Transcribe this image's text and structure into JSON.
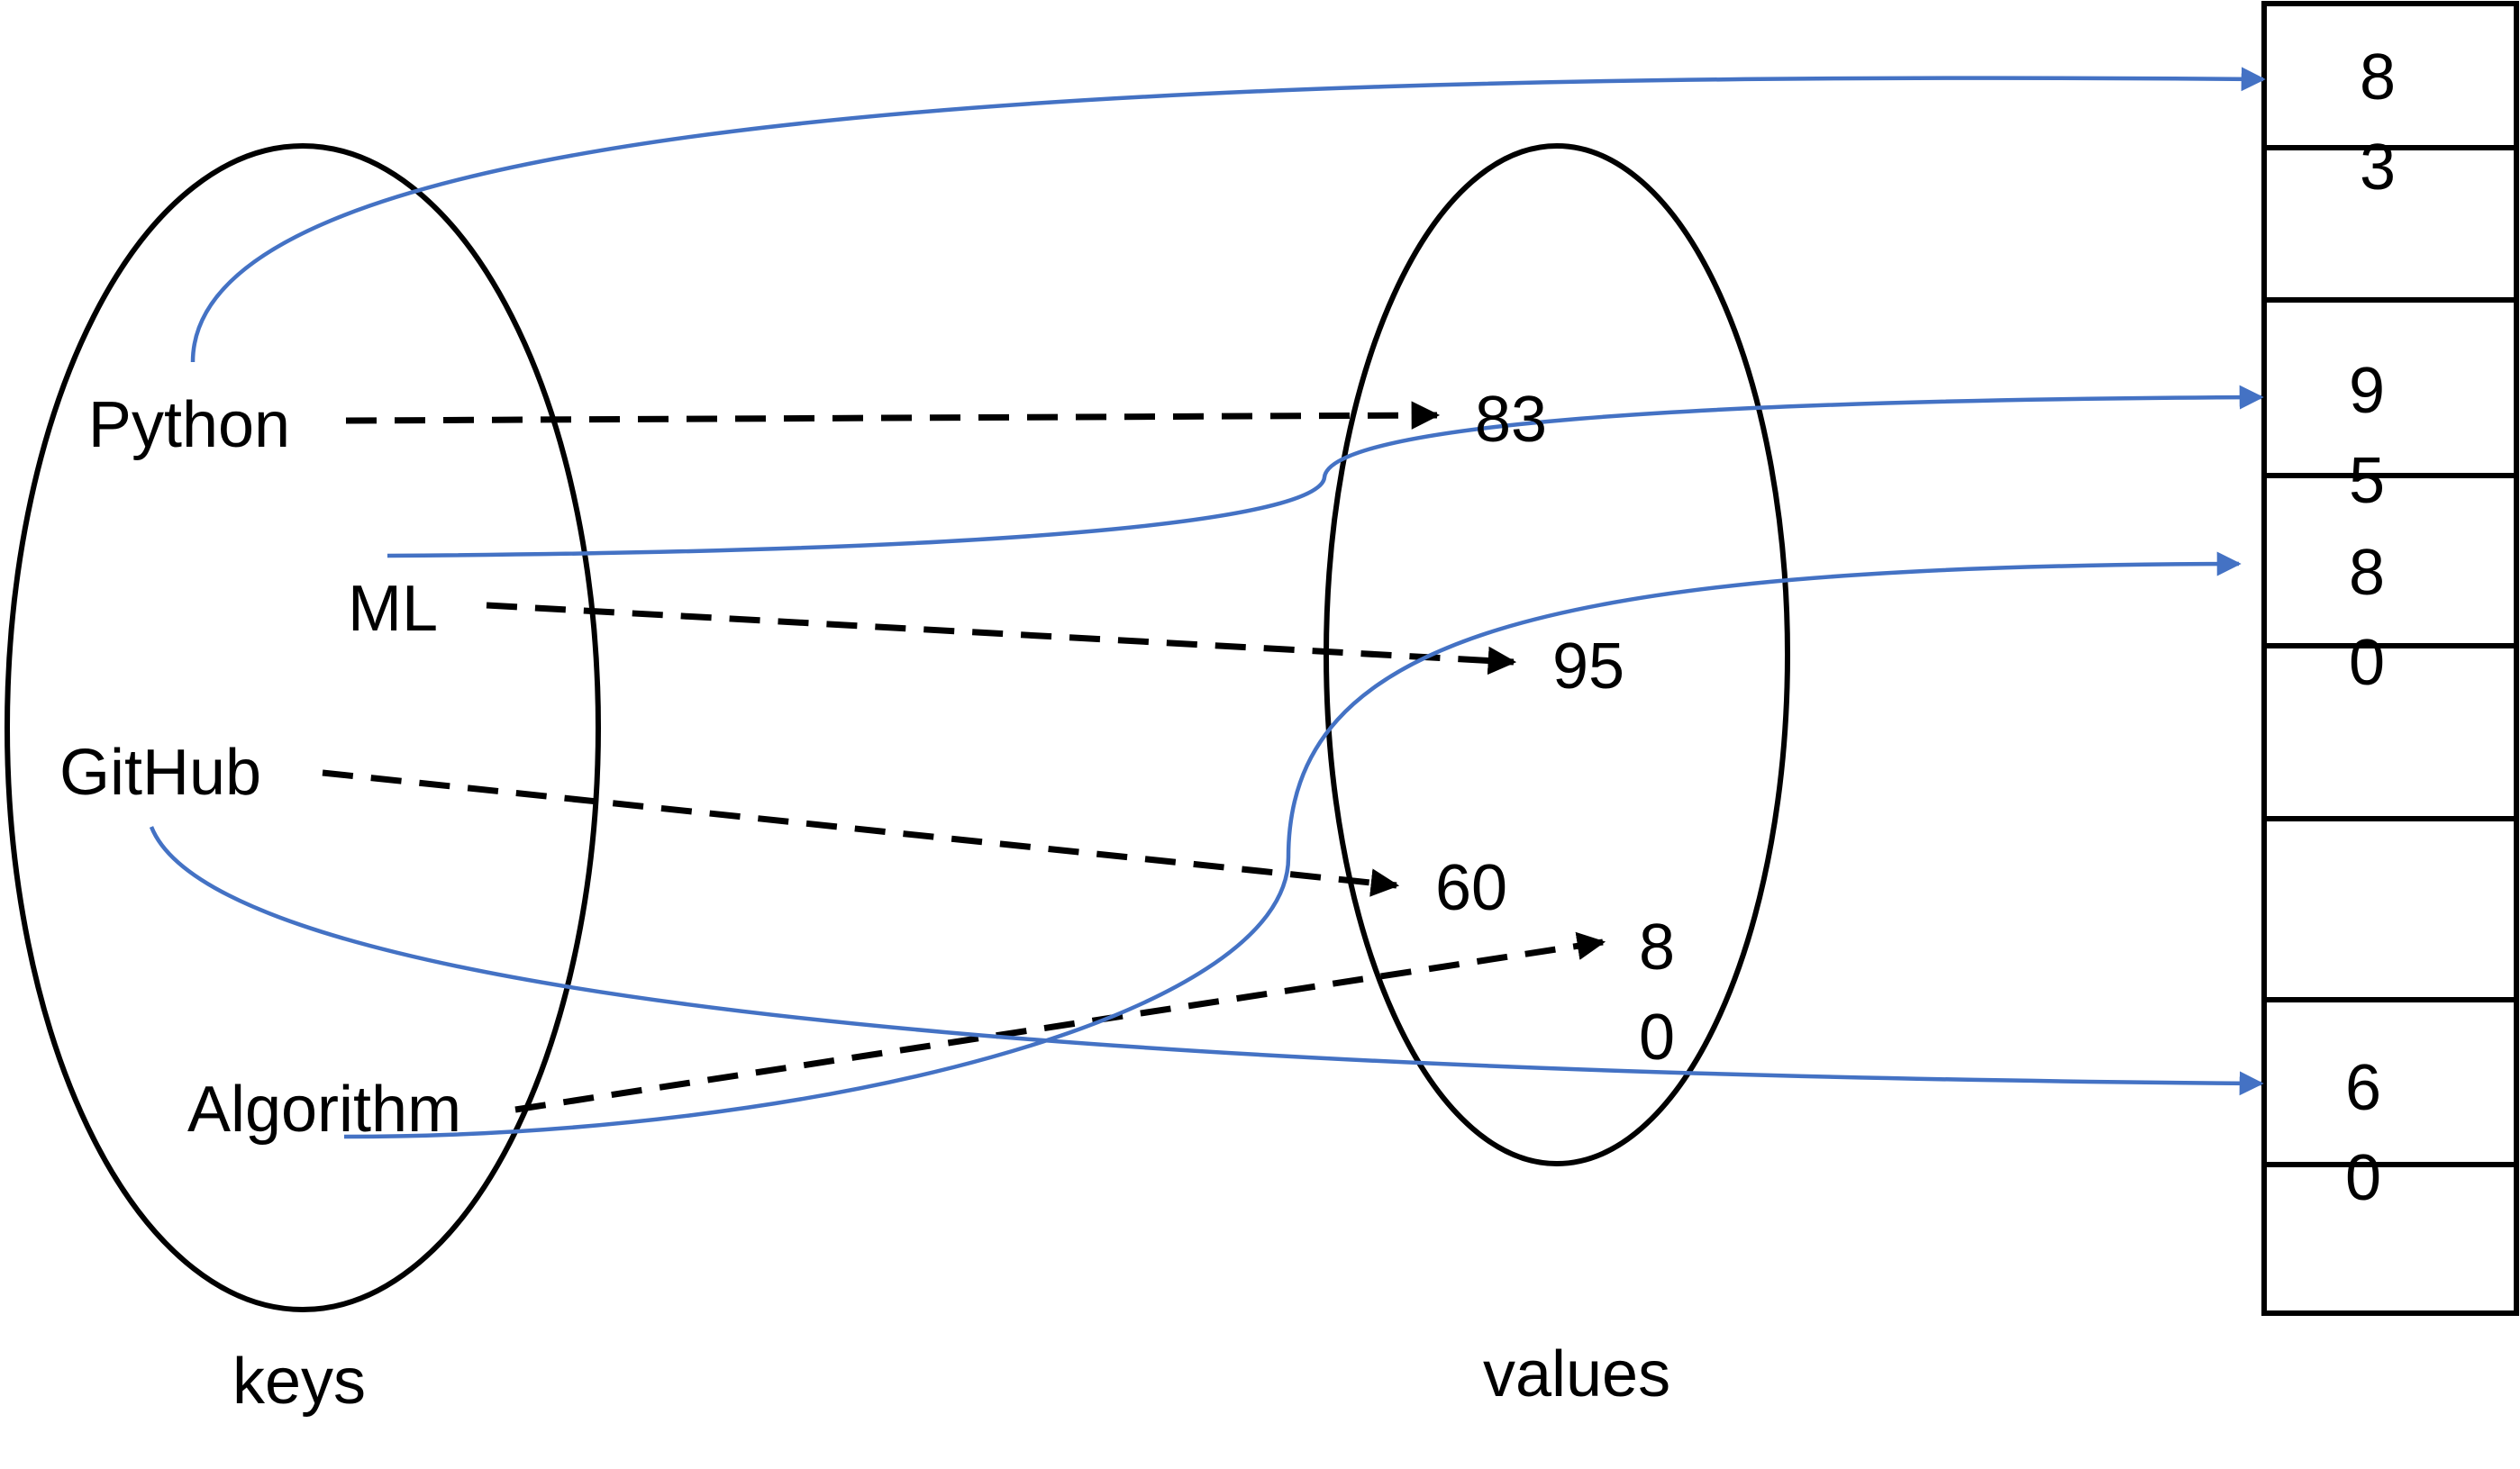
{
  "keys_label": "keys",
  "values_label": "values",
  "keys": [
    "Python",
    "ML",
    "GitHub",
    "Algorithm"
  ],
  "values": [
    {
      "line1": "83"
    },
    {
      "line1": "95"
    },
    {
      "line1": "60"
    },
    {
      "line1": "8",
      "line2": "0"
    }
  ],
  "memory_cells": [
    {
      "line1": "8",
      "line2": "3"
    },
    {
      "line1": "9",
      "line2": "5"
    },
    {
      "line1": "8",
      "line2": "0"
    },
    {
      "line1": "6",
      "line2": "0"
    }
  ],
  "colors": {
    "reference_line": "#4472C4",
    "mapping_arrow": "#000000",
    "outline": "#000000",
    "background": "#ffffff"
  }
}
